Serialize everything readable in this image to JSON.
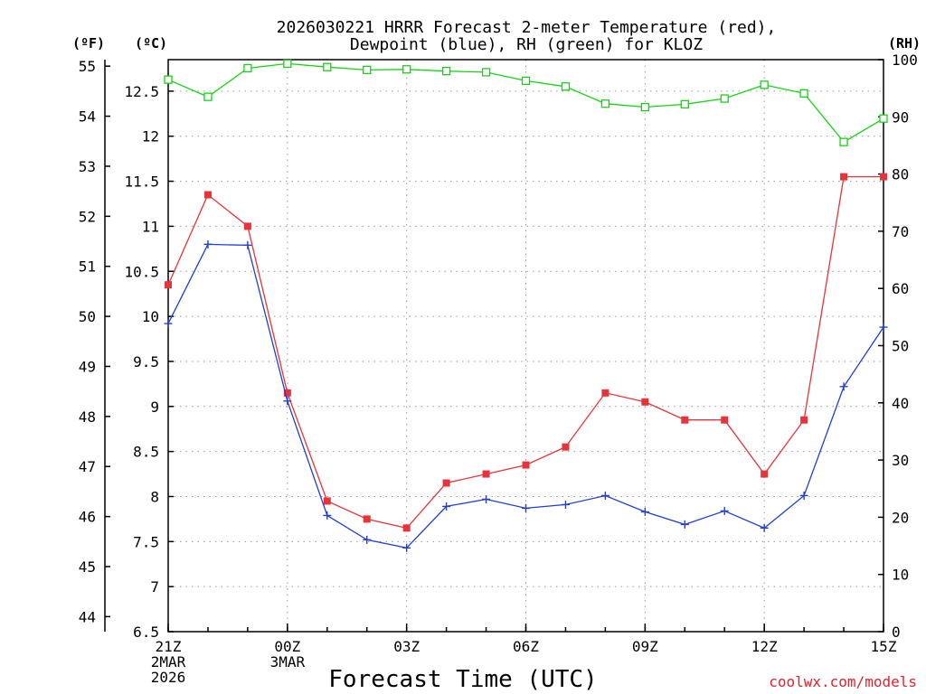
{
  "chart_data": {
    "type": "line",
    "title_line1": "2026030221 HRRR Forecast 2-meter Temperature (red),",
    "title_line2": "Dewpoint (blue), RH (green) for KLOZ",
    "xlabel": "Forecast Time (UTC)",
    "credit": "coolwx.com/models",
    "units": {
      "fahrenheit": "(ºF)",
      "celsius": "(ºC)",
      "rh": "(RH)"
    },
    "x_hours": [
      0,
      1,
      2,
      3,
      4,
      5,
      6,
      7,
      8,
      9,
      10,
      11,
      12,
      13,
      14,
      15,
      16,
      17,
      18
    ],
    "xlim": [
      0,
      18
    ],
    "x_ticks": [
      {
        "hour": 0,
        "lines": [
          "21Z",
          "2MAR",
          "2026"
        ]
      },
      {
        "hour": 3,
        "lines": [
          "00Z",
          "3MAR"
        ]
      },
      {
        "hour": 6,
        "lines": [
          "03Z"
        ]
      },
      {
        "hour": 9,
        "lines": [
          "06Z"
        ]
      },
      {
        "hour": 12,
        "lines": [
          "09Z"
        ]
      },
      {
        "hour": 15,
        "lines": [
          "12Z"
        ]
      },
      {
        "hour": 18,
        "lines": [
          "15Z"
        ]
      }
    ],
    "celsius_axis": {
      "ylim": [
        6.5,
        12.85
      ],
      "ticks": [
        "6.5",
        "7",
        "7.5",
        "8",
        "8.5",
        "9",
        "9.5",
        "10",
        "10.5",
        "11",
        "11.5",
        "12",
        "12.5"
      ]
    },
    "fahrenheit_axis": {
      "ticks": [
        "44",
        "45",
        "46",
        "47",
        "48",
        "49",
        "50",
        "51",
        "52",
        "53",
        "54",
        "55"
      ]
    },
    "rh_axis": {
      "ylim": [
        0,
        100
      ],
      "ticks": [
        "0",
        "10",
        "20",
        "30",
        "40",
        "50",
        "60",
        "70",
        "80",
        "90",
        "100"
      ]
    },
    "series": [
      {
        "name": "Temperature",
        "axis": "celsius",
        "color": "#e8333a",
        "marker": "filled-square",
        "values": [
          10.35,
          11.35,
          11.0,
          9.15,
          7.95,
          7.75,
          7.65,
          8.15,
          8.25,
          8.35,
          8.55,
          9.15,
          9.05,
          8.85,
          8.85,
          8.25,
          8.85,
          11.55,
          11.55
        ]
      },
      {
        "name": "Dewpoint",
        "axis": "celsius",
        "color": "#1f3fd6",
        "marker": "plus",
        "values": [
          9.92,
          10.8,
          10.79,
          9.06,
          7.79,
          7.52,
          7.43,
          7.89,
          7.97,
          7.87,
          7.91,
          8.01,
          7.83,
          7.69,
          7.84,
          7.65,
          8.01,
          9.22,
          9.88
        ]
      },
      {
        "name": "RH",
        "axis": "rh",
        "color": "#11d611",
        "marker": "open-square",
        "values": [
          96.5,
          93.5,
          98.5,
          99.3,
          98.7,
          98.2,
          98.3,
          98.0,
          97.8,
          96.3,
          95.3,
          92.3,
          91.7,
          92.2,
          93.2,
          95.6,
          94.1,
          85.6,
          89.7
        ]
      }
    ]
  }
}
